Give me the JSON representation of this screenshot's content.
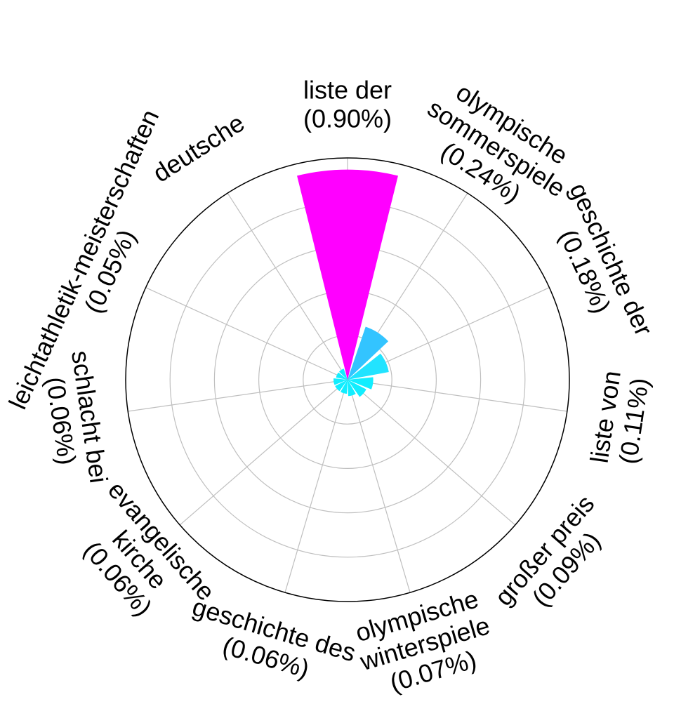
{
  "chart_data": {
    "type": "polar-bar",
    "title": "",
    "grid": true,
    "categories": [
      "liste der",
      "olympische sommerspiele",
      "geschichte der",
      "liste von",
      "großer preis",
      "olympische winterspiele",
      "geschichte des",
      "evangelische kirche",
      "schlacht bei",
      "leichtathletik-meisterschaften",
      "deutsche"
    ],
    "values": [
      0.9,
      0.24,
      0.18,
      0.11,
      0.09,
      0.07,
      0.06,
      0.06,
      0.06,
      0.05,
      0.05
    ],
    "value_labels": [
      "(0.90%)",
      "(0.24%)",
      "(0.18%)",
      "(0.11%)",
      "(0.09%)",
      "(0.07%)",
      "(0.06%)",
      "(0.06%)",
      "(0.06%)",
      "(0.05%)",
      ""
    ],
    "label_lines": [
      [
        "liste der",
        "(0.90%)"
      ],
      [
        "olympische",
        "sommerspiele",
        "(0.24%)"
      ],
      [
        "geschichte der",
        "(0.18%)"
      ],
      [
        "liste von",
        "(0.11%)"
      ],
      [
        "großer preis",
        "(0.09%)"
      ],
      [
        "olympische",
        "winterspiele",
        "(0.07%)"
      ],
      [
        "geschichte des",
        "(0.06%)"
      ],
      [
        "evangelische",
        "kirche",
        "(0.06%)"
      ],
      [
        "schlacht bei",
        "(0.06%)"
      ],
      [
        "leichtathletik-meisterschaften",
        "(0.05%)"
      ],
      [
        "deutsche"
      ]
    ],
    "colors": [
      "#ff00ff",
      "#33c4ff",
      "#22e3ff",
      "#11eeff",
      "#11eeff",
      "#11eeff",
      "#11eeff",
      "#11eeff",
      "#11eeff",
      "#11eeff",
      "#11eeff"
    ],
    "rlim": [
      0,
      0.95
    ],
    "grid_color": "#bfbfbf",
    "axis_color": "#000000"
  }
}
